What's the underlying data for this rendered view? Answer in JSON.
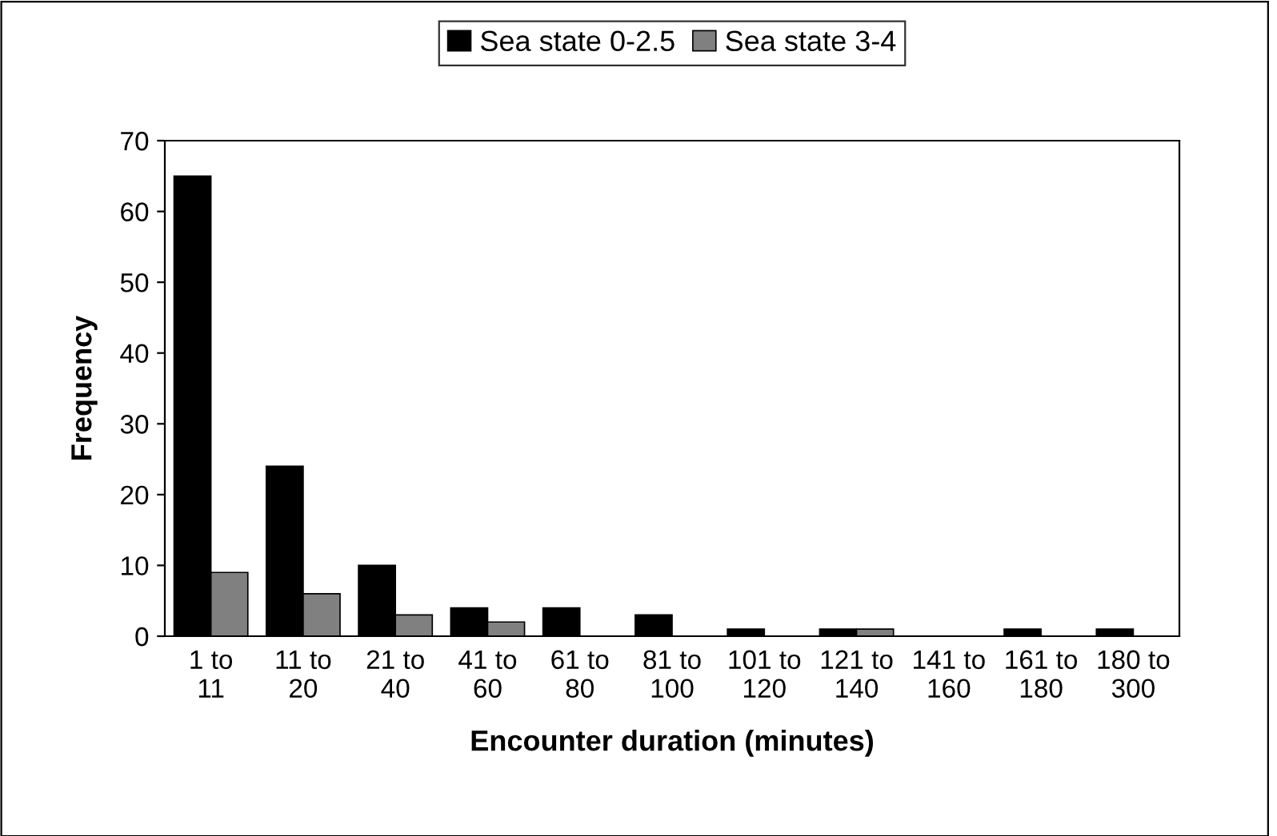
{
  "chart_data": {
    "type": "bar",
    "xlabel": "Encounter duration (minutes)",
    "ylabel": "Frequency",
    "categories": [
      "1 to\n11",
      "11 to\n20",
      "21 to\n40",
      "41 to\n60",
      "61 to\n80",
      "81 to\n100",
      "101 to\n120",
      "121 to\n140",
      "141 to\n160",
      "161 to\n180",
      "180 to\n300"
    ],
    "series": [
      {
        "name": "Sea state 0-2.5",
        "color": "#000000",
        "values": [
          65,
          24,
          10,
          4,
          4,
          3,
          1,
          1,
          0,
          1,
          1
        ]
      },
      {
        "name": "Sea state 3-4",
        "color": "#808080",
        "values": [
          9,
          6,
          3,
          2,
          0,
          0,
          0,
          1,
          0,
          0,
          0
        ]
      }
    ],
    "ylim": [
      0,
      70
    ],
    "yticks": [
      0,
      10,
      20,
      30,
      40,
      50,
      60,
      70
    ],
    "grid": false,
    "legend": "top"
  }
}
